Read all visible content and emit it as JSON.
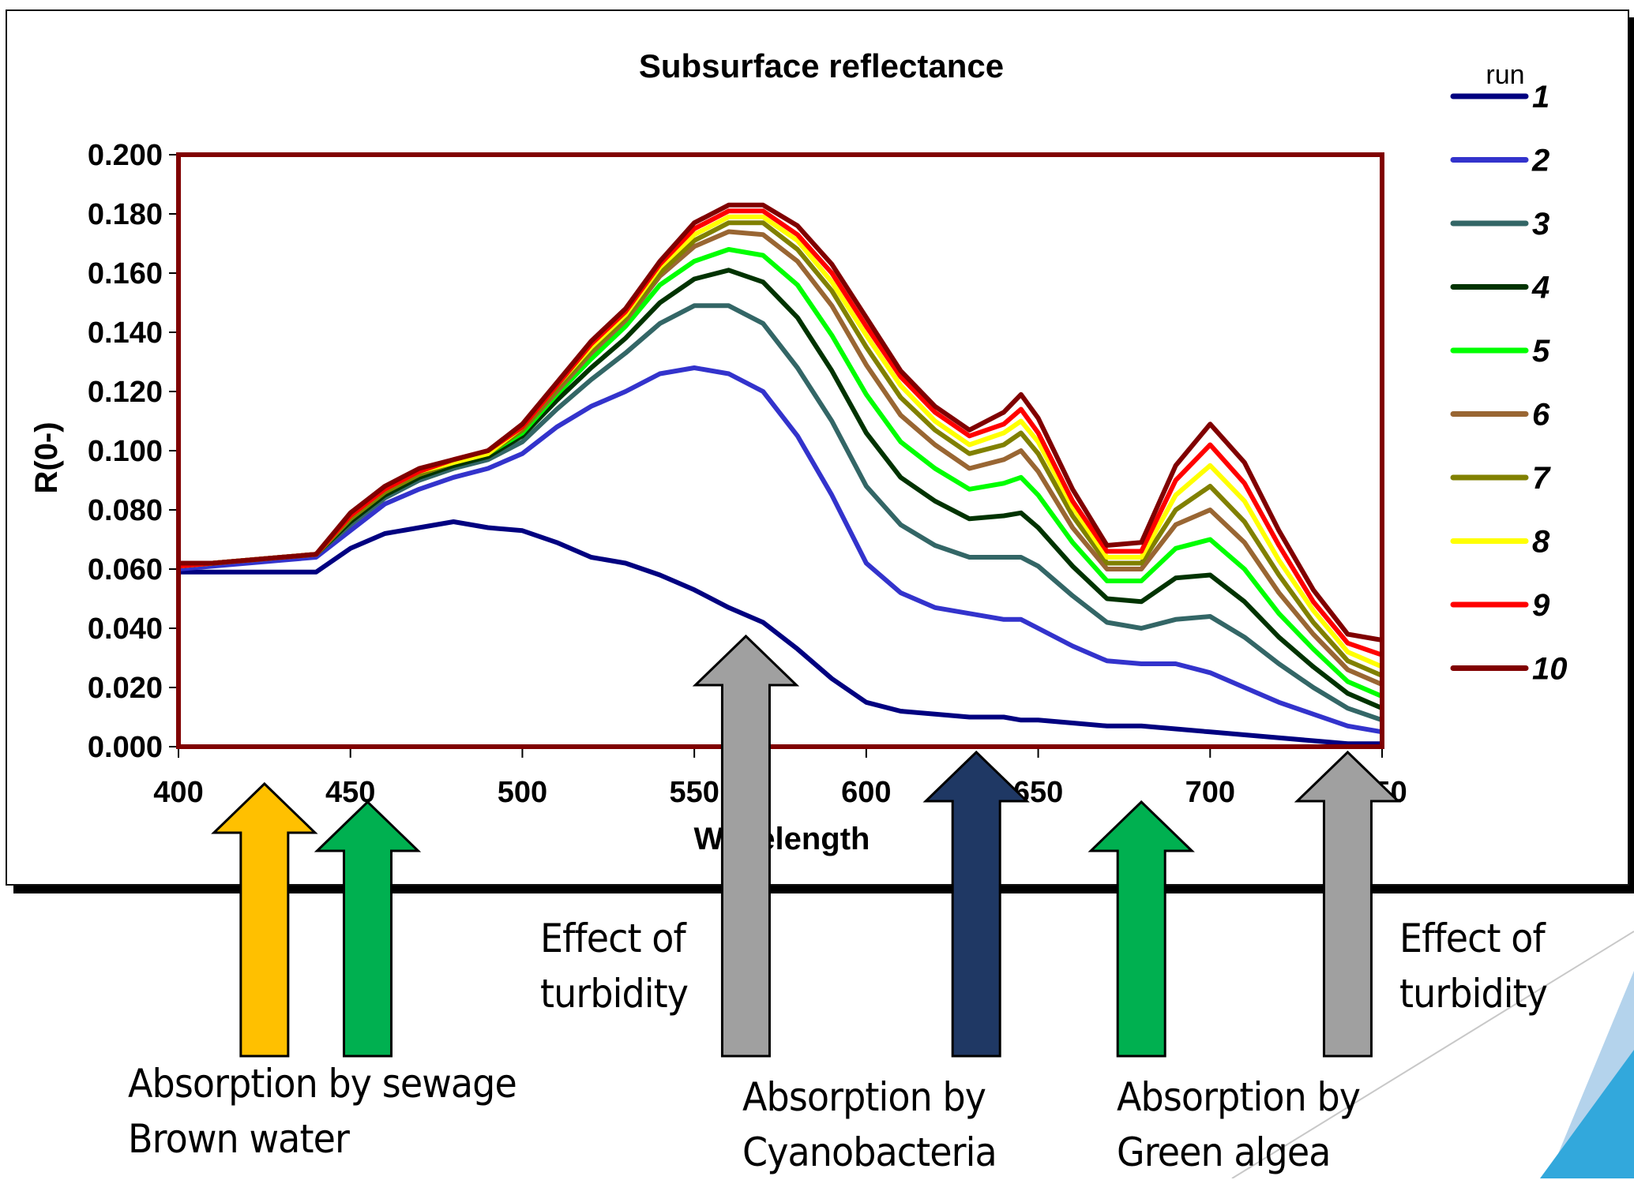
{
  "chart_data": {
    "type": "line",
    "title": "Subsurface reflectance",
    "xlabel": "Wavelength",
    "ylabel": "R(0-)",
    "xlim": [
      400,
      750
    ],
    "ylim": [
      0,
      0.2
    ],
    "x_ticks": [
      "400",
      "450",
      "500",
      "550",
      "600",
      "650",
      "700",
      "750"
    ],
    "y_ticks": [
      "0.000",
      "0.020",
      "0.040",
      "0.060",
      "0.080",
      "0.100",
      "0.120",
      "0.140",
      "0.160",
      "0.180",
      "0.200"
    ],
    "grid": false,
    "legend": {
      "title": "run",
      "placement": "right"
    },
    "x": [
      400,
      410,
      420,
      430,
      440,
      450,
      460,
      470,
      480,
      490,
      500,
      510,
      520,
      530,
      540,
      550,
      560,
      570,
      580,
      590,
      600,
      610,
      620,
      630,
      640,
      645,
      650,
      660,
      670,
      680,
      690,
      700,
      710,
      720,
      730,
      740,
      750
    ],
    "series": [
      {
        "name": "1",
        "color": "#000080",
        "values": [
          0.059,
          0.059,
          0.059,
          0.059,
          0.059,
          0.067,
          0.072,
          0.074,
          0.076,
          0.074,
          0.073,
          0.069,
          0.064,
          0.062,
          0.058,
          0.053,
          0.047,
          0.042,
          0.033,
          0.023,
          0.015,
          0.012,
          0.011,
          0.01,
          0.01,
          0.009,
          0.009,
          0.008,
          0.007,
          0.007,
          0.006,
          0.005,
          0.004,
          0.003,
          0.002,
          0.001,
          0.001
        ]
      },
      {
        "name": "2",
        "color": "#3333cc",
        "values": [
          0.06,
          0.061,
          0.062,
          0.063,
          0.064,
          0.073,
          0.082,
          0.087,
          0.091,
          0.094,
          0.099,
          0.108,
          0.115,
          0.12,
          0.126,
          0.128,
          0.126,
          0.12,
          0.105,
          0.085,
          0.062,
          0.052,
          0.047,
          0.045,
          0.043,
          0.043,
          0.04,
          0.034,
          0.029,
          0.028,
          0.028,
          0.025,
          0.02,
          0.015,
          0.011,
          0.007,
          0.005
        ]
      },
      {
        "name": "3",
        "color": "#336666",
        "values": [
          0.061,
          0.062,
          0.063,
          0.064,
          0.065,
          0.075,
          0.084,
          0.09,
          0.094,
          0.097,
          0.103,
          0.114,
          0.124,
          0.133,
          0.143,
          0.149,
          0.149,
          0.143,
          0.128,
          0.11,
          0.088,
          0.075,
          0.068,
          0.064,
          0.064,
          0.064,
          0.061,
          0.051,
          0.042,
          0.04,
          0.043,
          0.044,
          0.037,
          0.028,
          0.02,
          0.013,
          0.009
        ]
      },
      {
        "name": "4",
        "color": "#003300",
        "values": [
          0.061,
          0.062,
          0.063,
          0.064,
          0.065,
          0.076,
          0.085,
          0.091,
          0.095,
          0.098,
          0.105,
          0.117,
          0.128,
          0.138,
          0.15,
          0.158,
          0.161,
          0.157,
          0.145,
          0.127,
          0.106,
          0.091,
          0.083,
          0.077,
          0.078,
          0.079,
          0.074,
          0.061,
          0.05,
          0.049,
          0.057,
          0.058,
          0.049,
          0.037,
          0.027,
          0.018,
          0.013
        ]
      },
      {
        "name": "5",
        "color": "#00ff00",
        "values": [
          0.061,
          0.062,
          0.063,
          0.064,
          0.065,
          0.077,
          0.086,
          0.092,
          0.096,
          0.099,
          0.106,
          0.119,
          0.131,
          0.142,
          0.156,
          0.164,
          0.168,
          0.166,
          0.156,
          0.139,
          0.119,
          0.103,
          0.094,
          0.087,
          0.089,
          0.091,
          0.085,
          0.069,
          0.056,
          0.056,
          0.067,
          0.07,
          0.06,
          0.045,
          0.033,
          0.022,
          0.017
        ]
      },
      {
        "name": "6",
        "color": "#996633",
        "values": [
          0.061,
          0.062,
          0.063,
          0.064,
          0.065,
          0.077,
          0.086,
          0.092,
          0.096,
          0.099,
          0.107,
          0.12,
          0.133,
          0.144,
          0.159,
          0.169,
          0.174,
          0.173,
          0.164,
          0.149,
          0.129,
          0.112,
          0.102,
          0.094,
          0.097,
          0.1,
          0.093,
          0.074,
          0.06,
          0.06,
          0.075,
          0.08,
          0.069,
          0.052,
          0.038,
          0.026,
          0.021
        ]
      },
      {
        "name": "7",
        "color": "#808000",
        "values": [
          0.061,
          0.062,
          0.063,
          0.064,
          0.065,
          0.077,
          0.086,
          0.092,
          0.096,
          0.099,
          0.107,
          0.121,
          0.134,
          0.145,
          0.16,
          0.171,
          0.177,
          0.177,
          0.168,
          0.154,
          0.135,
          0.118,
          0.107,
          0.099,
          0.102,
          0.106,
          0.099,
          0.078,
          0.062,
          0.062,
          0.08,
          0.088,
          0.076,
          0.058,
          0.042,
          0.029,
          0.024
        ]
      },
      {
        "name": "8",
        "color": "#ffff00",
        "values": [
          0.061,
          0.062,
          0.063,
          0.064,
          0.065,
          0.078,
          0.087,
          0.093,
          0.096,
          0.099,
          0.108,
          0.122,
          0.135,
          0.146,
          0.162,
          0.173,
          0.179,
          0.179,
          0.171,
          0.157,
          0.139,
          0.122,
          0.11,
          0.102,
          0.106,
          0.11,
          0.103,
          0.081,
          0.064,
          0.064,
          0.085,
          0.095,
          0.083,
          0.063,
          0.046,
          0.032,
          0.027
        ]
      },
      {
        "name": "9",
        "color": "#ff0000",
        "values": [
          0.061,
          0.062,
          0.063,
          0.064,
          0.065,
          0.078,
          0.087,
          0.093,
          0.097,
          0.1,
          0.108,
          0.122,
          0.136,
          0.147,
          0.163,
          0.175,
          0.181,
          0.181,
          0.173,
          0.16,
          0.142,
          0.125,
          0.113,
          0.105,
          0.109,
          0.114,
          0.106,
          0.083,
          0.066,
          0.066,
          0.09,
          0.102,
          0.089,
          0.068,
          0.049,
          0.035,
          0.031
        ]
      },
      {
        "name": "10",
        "color": "#800000",
        "values": [
          0.062,
          0.062,
          0.063,
          0.064,
          0.065,
          0.079,
          0.088,
          0.094,
          0.097,
          0.1,
          0.109,
          0.123,
          0.137,
          0.148,
          0.164,
          0.177,
          0.183,
          0.183,
          0.176,
          0.163,
          0.145,
          0.127,
          0.115,
          0.107,
          0.113,
          0.119,
          0.111,
          0.087,
          0.068,
          0.069,
          0.095,
          0.109,
          0.096,
          0.073,
          0.053,
          0.038,
          0.036
        ]
      }
    ]
  },
  "annotations": {
    "effect_turbidity_1": [
      "Effect of",
      "turbidity"
    ],
    "effect_turbidity_2": [
      "Effect of",
      "turbidity"
    ],
    "absorption_sewage": [
      "Absorption by sewage",
      "Brown water"
    ],
    "absorption_cyanobacteria": [
      "Absorption by",
      "Cyanobacteria"
    ],
    "absorption_green_algae": [
      "Absorption by",
      "Green algea"
    ]
  },
  "arrows": [
    {
      "name": "sewage-absorption-arrow",
      "wavelength": 425,
      "color": "#ffc000"
    },
    {
      "name": "brown-water-absorption-arrow",
      "wavelength": 455,
      "color": "#00b050"
    },
    {
      "name": "turbidity-arrow-center",
      "wavelength": 565,
      "color": "#a0a0a0"
    },
    {
      "name": "cyanobacteria-absorption-arrow",
      "wavelength": 632,
      "color": "#1f3864"
    },
    {
      "name": "green-algae-absorption-arrow",
      "wavelength": 680,
      "color": "#00b050"
    },
    {
      "name": "turbidity-arrow-right",
      "wavelength": 740,
      "color": "#a0a0a0"
    }
  ],
  "colors": {
    "plot_frame": "#800000",
    "decor_light_blue": "#b4d3ec",
    "decor_blue": "#32a8dc"
  }
}
